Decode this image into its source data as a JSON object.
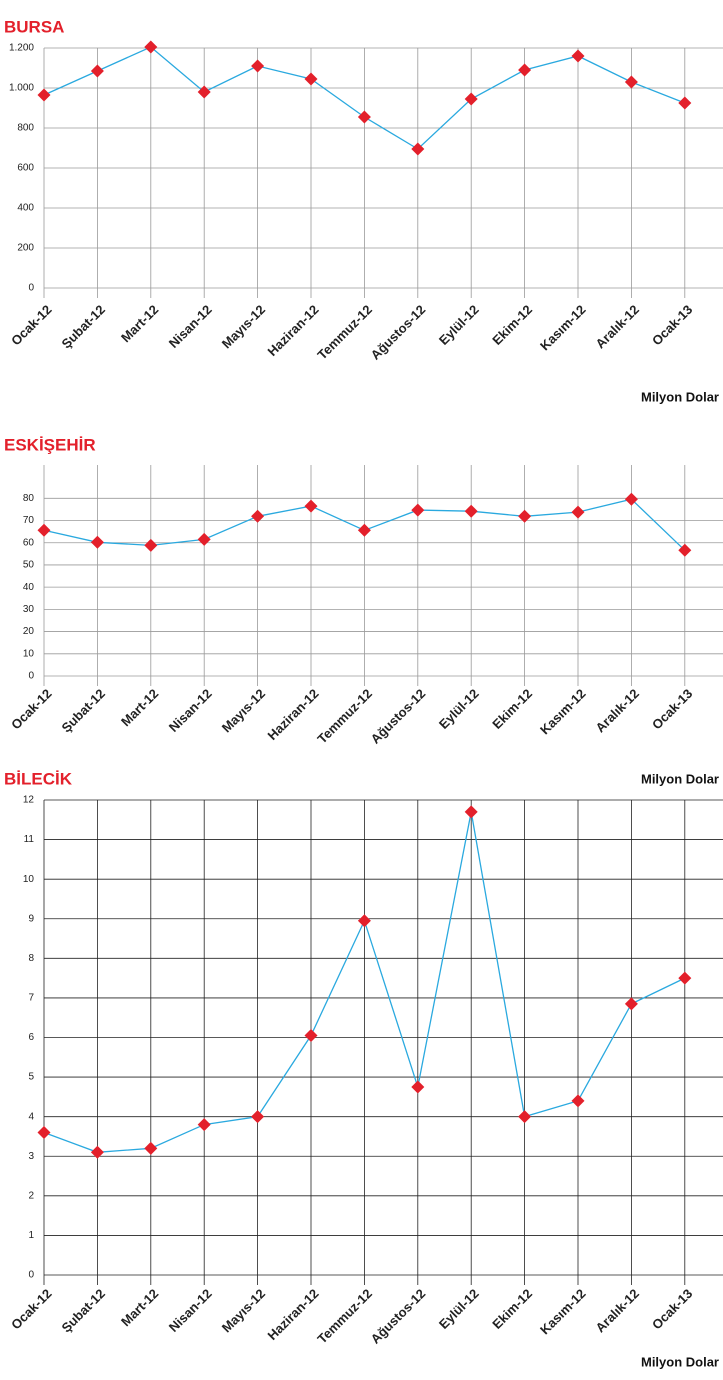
{
  "chart_data": [
    {
      "type": "line",
      "title": "BURSA",
      "unit_label": "Milyon Dolar",
      "categories": [
        "Ocak-12",
        "Şubat-12",
        "Mart-12",
        "Nisan-12",
        "Mayıs-12",
        "Haziran-12",
        "Temmuz-12",
        "Ağustos-12",
        "Eylül-12",
        "Ekim-12",
        "Kasım-12",
        "Aralık-12",
        "Ocak-13"
      ],
      "values": [
        965,
        1085,
        1205,
        980,
        1110,
        1045,
        855,
        695,
        945,
        1090,
        1160,
        1030,
        925
      ],
      "color": "#2aa9df",
      "marker_color": "#e3202b",
      "grid_color": "#9a9a9a",
      "ylim": [
        0,
        1200
      ],
      "yticks": [
        0,
        200,
        400,
        600,
        800,
        {
          "value": 1000,
          "label": "1.000"
        },
        {
          "value": 1200,
          "label": "1.200"
        }
      ]
    },
    {
      "type": "line",
      "title": "ESKİŞEHİR",
      "unit_label": "Milyon Dolar",
      "categories": [
        "Ocak-12",
        "Şubat-12",
        "Mart-12",
        "Nisan-12",
        "Mayıs-12",
        "Haziran-12",
        "Temmuz-12",
        "Ağustos-12",
        "Eylül-12",
        "Ekim-12",
        "Kasım-12",
        "Aralık-12",
        "Ocak-13"
      ],
      "values": [
        65.6,
        60.2,
        58.8,
        61.5,
        71.9,
        76.5,
        65.6,
        74.7,
        74.2,
        71.9,
        73.8,
        79.6,
        56.6
      ],
      "color": "#2aa9df",
      "marker_color": "#e3202b",
      "grid_color": "#9a9a9a",
      "ylim": [
        0,
        95
      ],
      "yticks": [
        0,
        10,
        20,
        30,
        40,
        50,
        60,
        70,
        80
      ]
    },
    {
      "type": "line",
      "title": "BİLECİK",
      "unit_label": "Milyon Dolar",
      "categories": [
        "Ocak-12",
        "Şubat-12",
        "Mart-12",
        "Nisan-12",
        "Mayıs-12",
        "Haziran-12",
        "Temmuz-12",
        "Ağustos-12",
        "Eylül-12",
        "Ekim-12",
        "Kasım-12",
        "Aralık-12",
        "Ocak-13"
      ],
      "values": [
        3.6,
        3.1,
        3.2,
        3.8,
        4.0,
        6.05,
        8.95,
        4.75,
        11.7,
        4.0,
        4.4,
        6.85,
        7.5
      ],
      "color": "#2aa9df",
      "marker_color": "#e3202b",
      "grid_color": "#222222",
      "ylim": [
        0,
        12
      ],
      "yticks": [
        0,
        1,
        2,
        3,
        4,
        5,
        6,
        7,
        8,
        9,
        10,
        11,
        12
      ]
    }
  ]
}
